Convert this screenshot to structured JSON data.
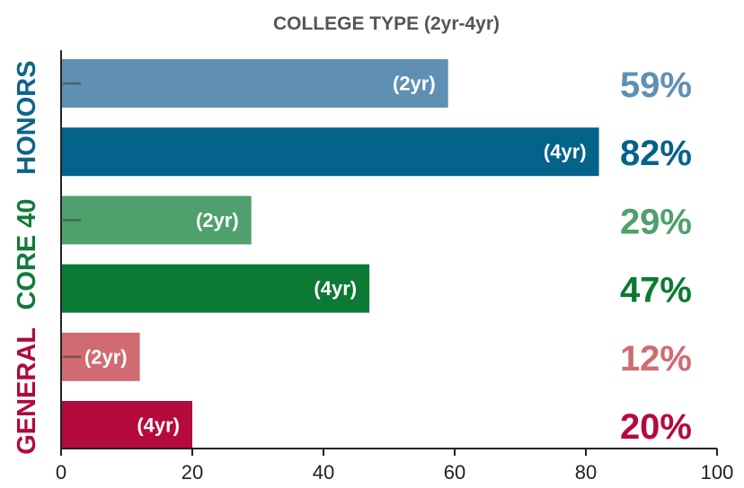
{
  "chart_data": {
    "type": "bar",
    "orientation": "horizontal",
    "title": "COLLEGE TYPE (2yr-4yr)",
    "xlim": [
      0,
      100
    ],
    "x_ticks": [
      "0",
      "20",
      "40",
      "60",
      "80",
      "100"
    ],
    "grid": false,
    "groups": [
      {
        "name": "HONORS",
        "color": "#0e6489",
        "bars": [
          {
            "label": "(2yr)",
            "value": 59,
            "value_label": "59%",
            "color": "#5f90b4"
          },
          {
            "label": "(4yr)",
            "value": 82,
            "value_label": "82%",
            "color": "#04628b"
          }
        ]
      },
      {
        "name": "CORE 40",
        "color": "#137a3a",
        "bars": [
          {
            "label": "(2yr)",
            "value": 29,
            "value_label": "29%",
            "color": "#4ea06c"
          },
          {
            "label": "(4yr)",
            "value": 47,
            "value_label": "47%",
            "color": "#0c7a35"
          }
        ]
      },
      {
        "name": "GENERAL",
        "color": "#b00a3c",
        "bars": [
          {
            "label": "(2yr)",
            "value": 12,
            "value_label": "12%",
            "color": "#d06b72"
          },
          {
            "label": "(4yr)",
            "value": 20,
            "value_label": "20%",
            "color": "#b40a3d"
          }
        ]
      }
    ]
  }
}
